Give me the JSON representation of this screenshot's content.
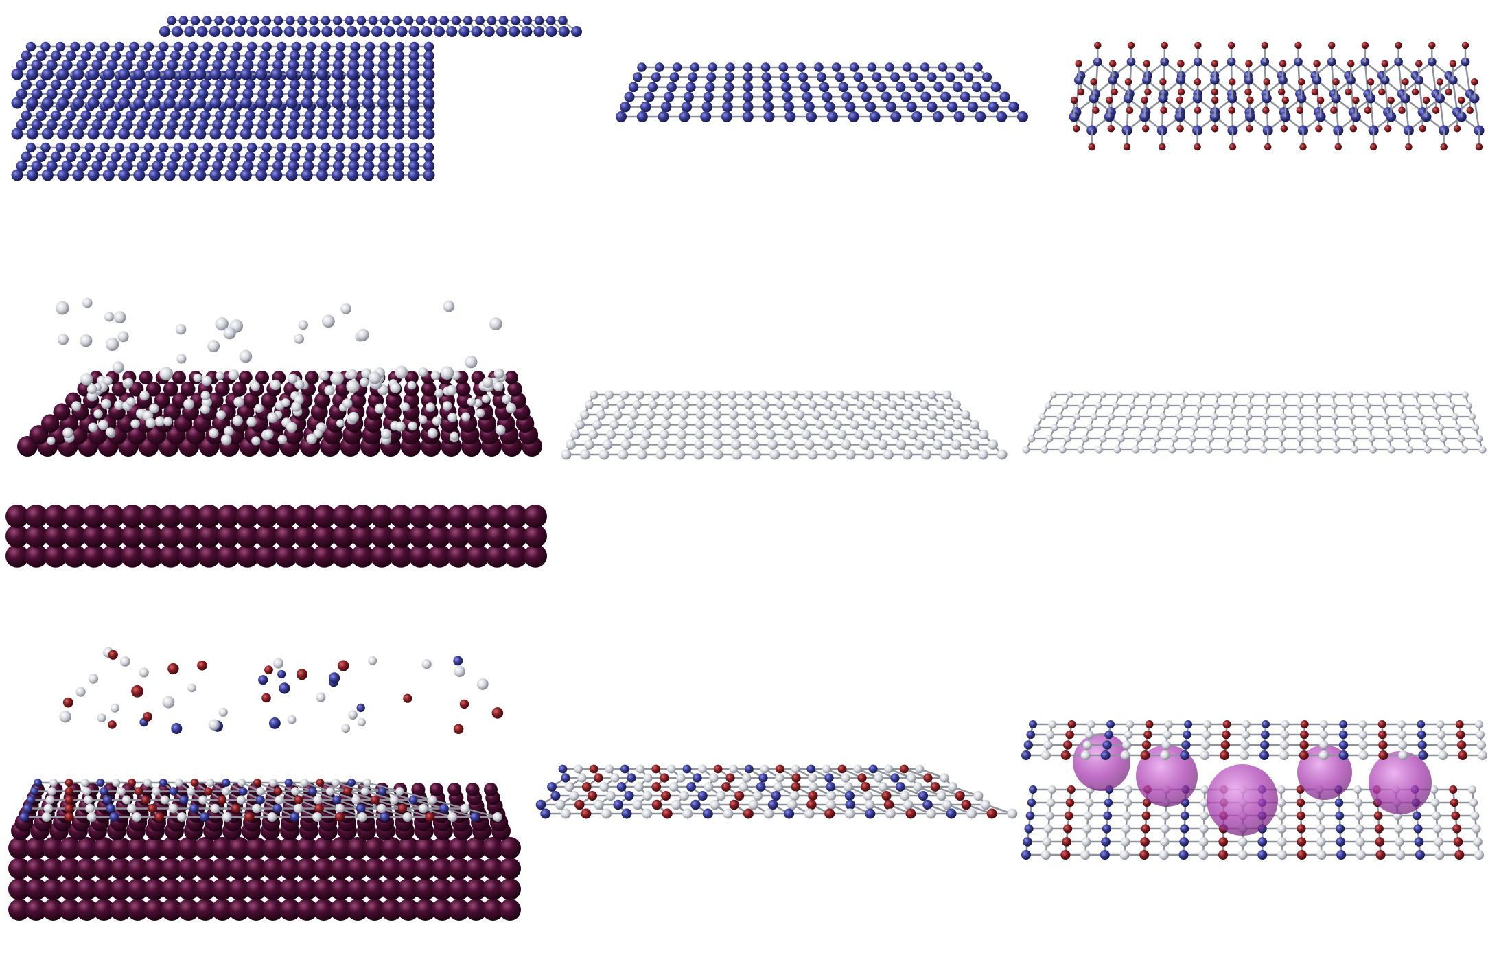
{
  "figure": {
    "rows": 3,
    "cols": 3,
    "background": "#ffffff"
  },
  "colors": {
    "blue_atom": "#3a3e9c",
    "white_atom": "#d6d8de",
    "red_atom": "#8a1f24",
    "substrate_atom": "#4a0f32",
    "intercalant": "#a93db0",
    "bond": "#8f949c"
  },
  "panels": [
    {
      "id": "stacked-blue-sheets",
      "row": 0,
      "col": 0,
      "kind": "stacked-sheets",
      "atom": "blue_atom",
      "layers": 5
    },
    {
      "id": "single-blue-sheet",
      "row": 0,
      "col": 1,
      "kind": "flat-sheet",
      "atom": "blue_atom"
    },
    {
      "id": "buckled-blue-red-sheet",
      "row": 0,
      "col": 2,
      "kind": "buckled-sheet",
      "atom": "blue_atom",
      "pendant": "red_atom"
    },
    {
      "id": "white-atoms-on-substrate",
      "row": 1,
      "col": 0,
      "kind": "deposition",
      "substrate": "substrate_atom",
      "adatoms": [
        "white_atom"
      ]
    },
    {
      "id": "grown-white-sheet",
      "row": 1,
      "col": 1,
      "kind": "flat-sheet",
      "atom": "white_atom"
    },
    {
      "id": "thin-white-sheet",
      "row": 1,
      "col": 2,
      "kind": "flat-sheet-thin",
      "atom": "white_atom"
    },
    {
      "id": "mixed-atoms-on-substrate",
      "row": 2,
      "col": 0,
      "kind": "deposition",
      "substrate": "substrate_atom",
      "adatoms": [
        "white_atom",
        "blue_atom",
        "red_atom"
      ]
    },
    {
      "id": "striped-heterostructure-sheet",
      "row": 2,
      "col": 1,
      "kind": "striped-sheet",
      "atoms": [
        "white_atom",
        "blue_atom",
        "red_atom"
      ]
    },
    {
      "id": "intercalated-bilayer",
      "row": 2,
      "col": 2,
      "kind": "intercalated-bilayer",
      "atoms": [
        "white_atom",
        "blue_atom",
        "red_atom"
      ],
      "intercalant": "intercalant"
    }
  ]
}
